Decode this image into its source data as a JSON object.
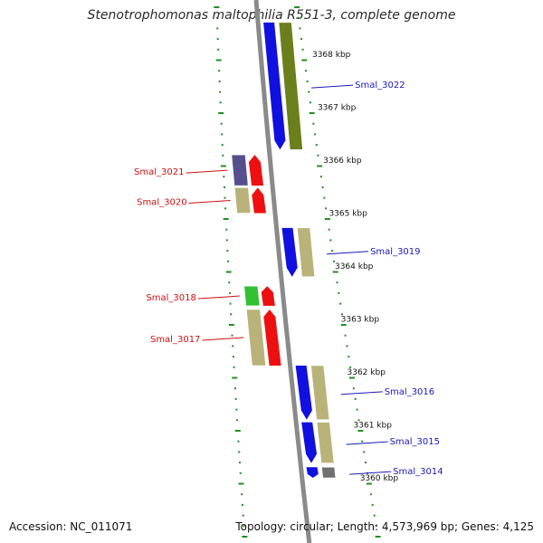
{
  "header": {
    "title": "Stenotrophomonas maltophilia R551-3, complete genome"
  },
  "footer": {
    "accession": "Accession: NC_011071",
    "summary": "Topology: circular; Length: 4,573,969 bp; Genes: 4,125"
  },
  "colors": {
    "backbone": "#8a8a8a",
    "tick_minor": "#1f8f1f",
    "tick_major": "#1f8f1f",
    "label_forward": "#1a1ab8",
    "label_reverse": "#cc1010"
  },
  "position_labels": [
    "3368 kbp",
    "3367 kbp",
    "3366 kbp",
    "3365 kbp",
    "3364 kbp",
    "3363 kbp",
    "3362 kbp",
    "3361 kbp",
    "3360 kbp"
  ],
  "genes_forward": [
    {
      "label": "Smal_3022",
      "start": 3366.2,
      "end": 3368.6,
      "color": "#1010e0",
      "feature_color": "#6b7f1c"
    },
    {
      "label": "Smal_3019",
      "start": 3363.8,
      "end": 3364.72,
      "color": "#1010e0",
      "feature_color": "#b9b37a"
    },
    {
      "label": "Smal_3016",
      "start": 3361.1,
      "end": 3362.12,
      "color": "#1010e0",
      "feature_color": "#b9b37a"
    },
    {
      "label": "Smal_3015",
      "start": 3360.28,
      "end": 3361.05,
      "color": "#1010e0",
      "feature_color": "#b9b37a"
    },
    {
      "label": "Smal_3014",
      "start": 3360.0,
      "end": 3360.2,
      "color": "#1010e0",
      "feature_color": "#707070"
    }
  ],
  "genes_reverse": [
    {
      "label": "Smal_3021",
      "start": 3365.52,
      "end": 3366.1,
      "color": "#ee1010",
      "feature_color": "#55508c"
    },
    {
      "label": "Smal_3020",
      "start": 3365.0,
      "end": 3365.48,
      "color": "#ee1010",
      "feature_color": "#b9b37a"
    },
    {
      "label": "Smal_3018",
      "start": 3363.25,
      "end": 3363.62,
      "color": "#ee1010",
      "feature_color": "#33c033"
    },
    {
      "label": "Smal_3017",
      "start": 3362.12,
      "end": 3363.18,
      "color": "#ee1010",
      "feature_color": "#b9b37a"
    }
  ]
}
